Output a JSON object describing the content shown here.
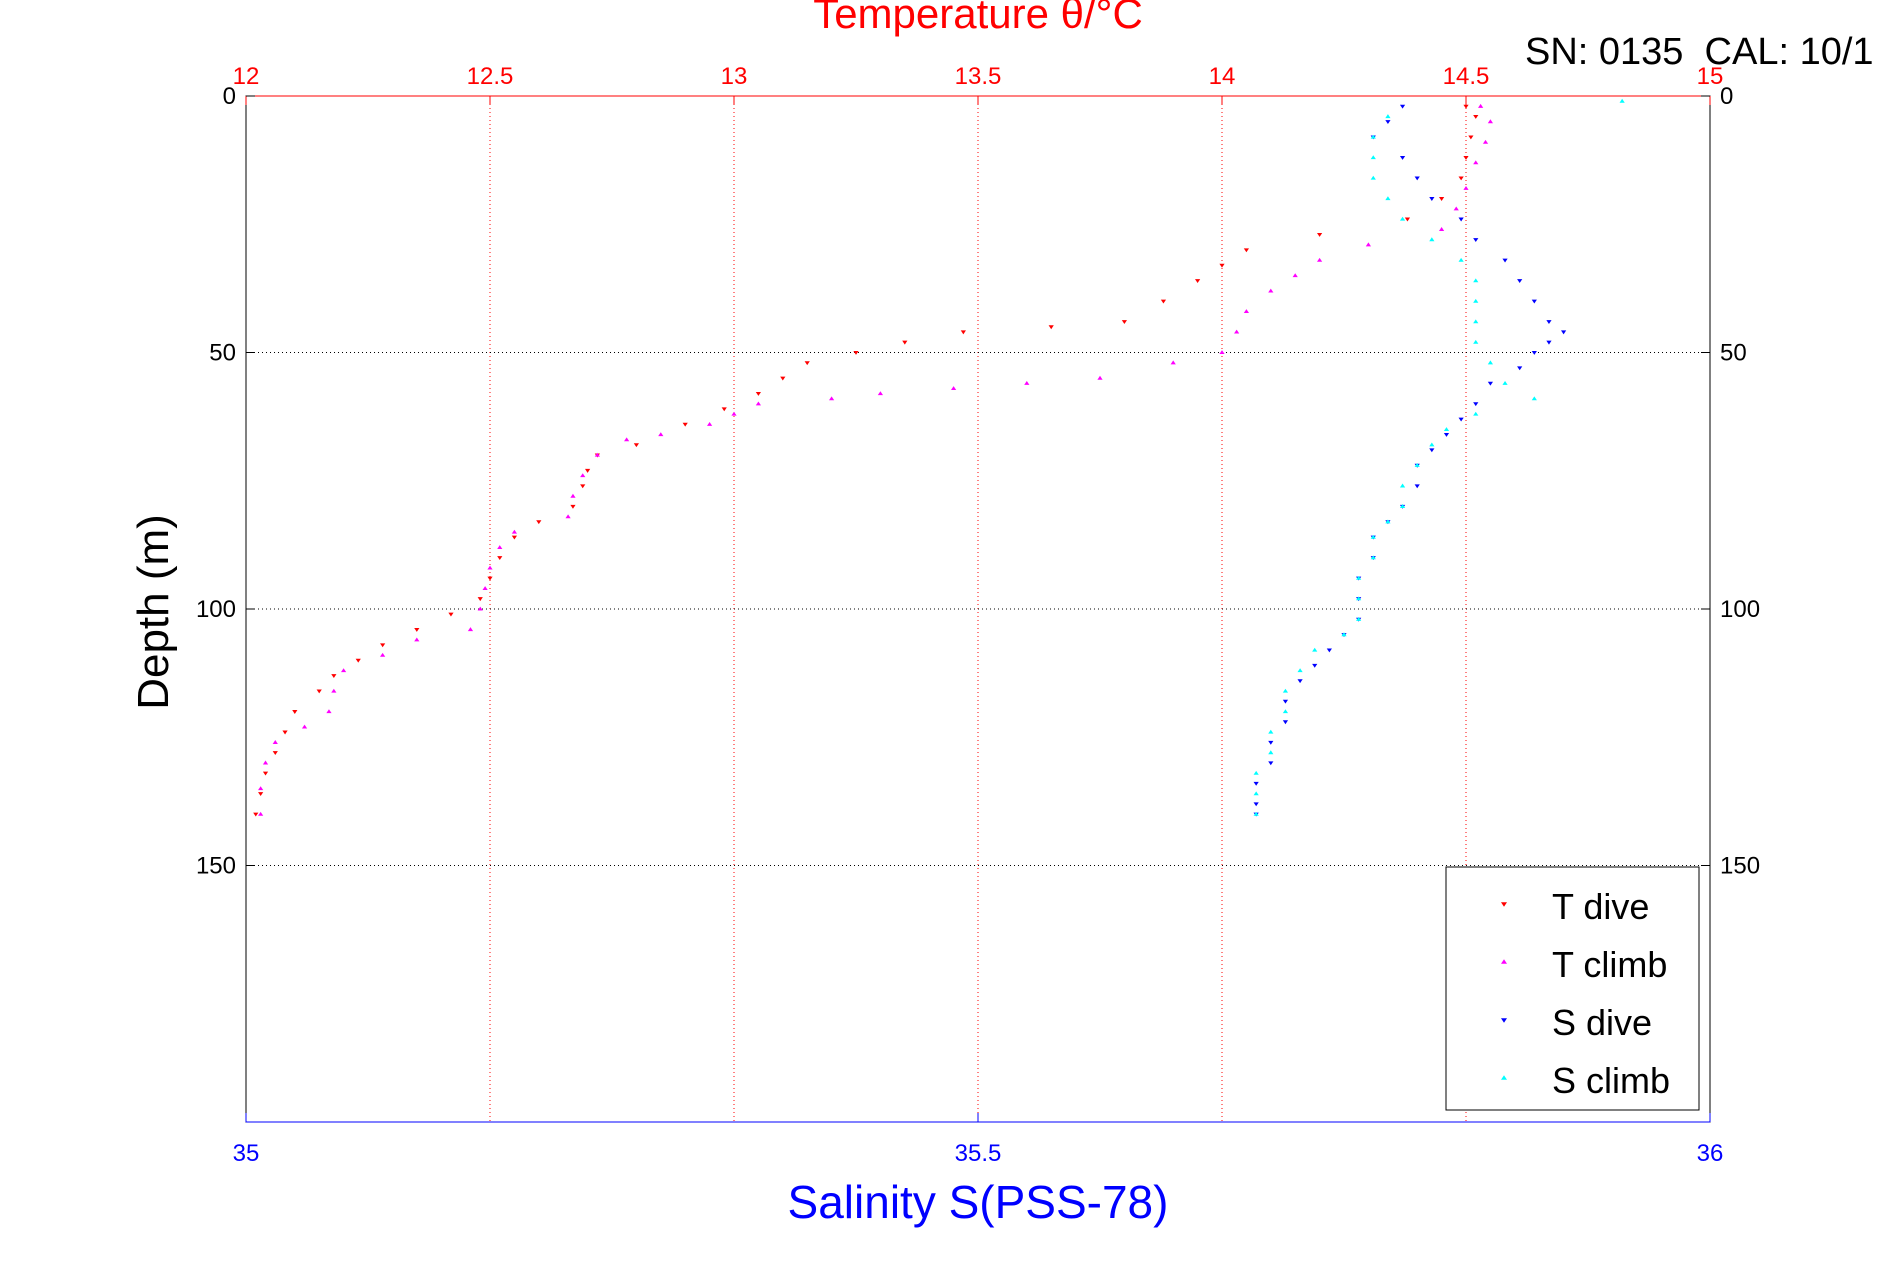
{
  "chart_data": {
    "type": "scatter",
    "title": "Temperature θ/°C",
    "header_text": "SN: 0135  CAL: 10/1",
    "ylabel": "Depth (m)",
    "xlabel": "Salinity S(PSS-78)",
    "top_axis": {
      "label": "Temperature θ/°C",
      "range": [
        12,
        15
      ],
      "ticks": [
        "12",
        "12.5",
        "13",
        "13.5",
        "14",
        "14.5",
        "15"
      ],
      "color": "#ff0000"
    },
    "bottom_axis": {
      "label": "Salinity S(PSS-78)",
      "range": [
        35,
        36
      ],
      "ticks": [
        "35",
        "35.5",
        "36"
      ],
      "color": "#0000ff"
    },
    "y_axis": {
      "range": [
        0,
        200
      ],
      "reversed": true,
      "ticks": [
        "0",
        "50",
        "100",
        "150"
      ]
    },
    "grid": true,
    "legend": {
      "position": "bottom-right"
    },
    "series": [
      {
        "name": "T dive",
        "axis": "temperature",
        "color": "#ff0000",
        "marker": "triangle-down",
        "points": [
          [
            14.5,
            2
          ],
          [
            14.52,
            4
          ],
          [
            14.51,
            8
          ],
          [
            14.5,
            12
          ],
          [
            14.49,
            16
          ],
          [
            14.45,
            20
          ],
          [
            14.38,
            24
          ],
          [
            14.2,
            27
          ],
          [
            14.05,
            30
          ],
          [
            14.0,
            33
          ],
          [
            13.95,
            36
          ],
          [
            13.88,
            40
          ],
          [
            13.8,
            44
          ],
          [
            13.65,
            45
          ],
          [
            13.47,
            46
          ],
          [
            13.35,
            48
          ],
          [
            13.25,
            50
          ],
          [
            13.15,
            52
          ],
          [
            13.1,
            55
          ],
          [
            13.05,
            58
          ],
          [
            12.98,
            61
          ],
          [
            12.9,
            64
          ],
          [
            12.8,
            68
          ],
          [
            12.72,
            70
          ],
          [
            12.7,
            73
          ],
          [
            12.69,
            76
          ],
          [
            12.67,
            80
          ],
          [
            12.6,
            83
          ],
          [
            12.55,
            86
          ],
          [
            12.52,
            90
          ],
          [
            12.5,
            94
          ],
          [
            12.48,
            98
          ],
          [
            12.42,
            101
          ],
          [
            12.35,
            104
          ],
          [
            12.28,
            107
          ],
          [
            12.23,
            110
          ],
          [
            12.18,
            113
          ],
          [
            12.15,
            116
          ],
          [
            12.1,
            120
          ],
          [
            12.08,
            124
          ],
          [
            12.06,
            128
          ],
          [
            12.04,
            132
          ],
          [
            12.03,
            136
          ],
          [
            12.02,
            140
          ]
        ]
      },
      {
        "name": "T climb",
        "axis": "temperature",
        "color": "#ff00ff",
        "marker": "triangle-up",
        "points": [
          [
            14.53,
            2
          ],
          [
            14.55,
            5
          ],
          [
            14.54,
            9
          ],
          [
            14.52,
            13
          ],
          [
            14.5,
            18
          ],
          [
            14.48,
            22
          ],
          [
            14.45,
            26
          ],
          [
            14.3,
            29
          ],
          [
            14.2,
            32
          ],
          [
            14.15,
            35
          ],
          [
            14.1,
            38
          ],
          [
            14.05,
            42
          ],
          [
            14.03,
            46
          ],
          [
            14.0,
            50
          ],
          [
            13.9,
            52
          ],
          [
            13.75,
            55
          ],
          [
            13.6,
            56
          ],
          [
            13.45,
            57
          ],
          [
            13.3,
            58
          ],
          [
            13.2,
            59
          ],
          [
            13.05,
            60
          ],
          [
            13.0,
            62
          ],
          [
            12.95,
            64
          ],
          [
            12.85,
            66
          ],
          [
            12.78,
            67
          ],
          [
            12.72,
            70
          ],
          [
            12.69,
            74
          ],
          [
            12.67,
            78
          ],
          [
            12.66,
            82
          ],
          [
            12.55,
            85
          ],
          [
            12.52,
            88
          ],
          [
            12.5,
            92
          ],
          [
            12.49,
            96
          ],
          [
            12.48,
            100
          ],
          [
            12.46,
            104
          ],
          [
            12.35,
            106
          ],
          [
            12.28,
            109
          ],
          [
            12.2,
            112
          ],
          [
            12.18,
            116
          ],
          [
            12.17,
            120
          ],
          [
            12.12,
            123
          ],
          [
            12.06,
            126
          ],
          [
            12.04,
            130
          ],
          [
            12.03,
            135
          ],
          [
            12.03,
            140
          ]
        ]
      },
      {
        "name": "S dive",
        "axis": "salinity",
        "color": "#0000ff",
        "marker": "triangle-down",
        "points": [
          [
            35.79,
            2
          ],
          [
            35.78,
            5
          ],
          [
            35.77,
            8
          ],
          [
            35.79,
            12
          ],
          [
            35.8,
            16
          ],
          [
            35.81,
            20
          ],
          [
            35.83,
            24
          ],
          [
            35.84,
            28
          ],
          [
            35.86,
            32
          ],
          [
            35.87,
            36
          ],
          [
            35.88,
            40
          ],
          [
            35.89,
            44
          ],
          [
            35.9,
            46
          ],
          [
            35.89,
            48
          ],
          [
            35.88,
            50
          ],
          [
            35.87,
            53
          ],
          [
            35.85,
            56
          ],
          [
            35.84,
            60
          ],
          [
            35.83,
            63
          ],
          [
            35.82,
            66
          ],
          [
            35.81,
            69
          ],
          [
            35.8,
            72
          ],
          [
            35.8,
            76
          ],
          [
            35.79,
            80
          ],
          [
            35.78,
            83
          ],
          [
            35.77,
            86
          ],
          [
            35.77,
            90
          ],
          [
            35.76,
            94
          ],
          [
            35.76,
            98
          ],
          [
            35.76,
            102
          ],
          [
            35.75,
            105
          ],
          [
            35.74,
            108
          ],
          [
            35.73,
            111
          ],
          [
            35.72,
            114
          ],
          [
            35.71,
            118
          ],
          [
            35.71,
            122
          ],
          [
            35.7,
            126
          ],
          [
            35.7,
            130
          ],
          [
            35.69,
            134
          ],
          [
            35.69,
            138
          ],
          [
            35.69,
            140
          ]
        ]
      },
      {
        "name": "S climb",
        "axis": "salinity",
        "color": "#00ffff",
        "marker": "triangle-up",
        "points": [
          [
            35.94,
            1
          ],
          [
            35.78,
            4
          ],
          [
            35.77,
            8
          ],
          [
            35.77,
            12
          ],
          [
            35.77,
            16
          ],
          [
            35.78,
            20
          ],
          [
            35.79,
            24
          ],
          [
            35.81,
            28
          ],
          [
            35.83,
            32
          ],
          [
            35.84,
            36
          ],
          [
            35.84,
            40
          ],
          [
            35.84,
            44
          ],
          [
            35.84,
            48
          ],
          [
            35.85,
            52
          ],
          [
            35.86,
            56
          ],
          [
            35.88,
            59
          ],
          [
            35.84,
            62
          ],
          [
            35.82,
            65
          ],
          [
            35.81,
            68
          ],
          [
            35.8,
            72
          ],
          [
            35.79,
            76
          ],
          [
            35.79,
            80
          ],
          [
            35.78,
            83
          ],
          [
            35.77,
            86
          ],
          [
            35.77,
            90
          ],
          [
            35.76,
            94
          ],
          [
            35.76,
            98
          ],
          [
            35.76,
            102
          ],
          [
            35.75,
            105
          ],
          [
            35.73,
            108
          ],
          [
            35.72,
            112
          ],
          [
            35.71,
            116
          ],
          [
            35.71,
            120
          ],
          [
            35.7,
            124
          ],
          [
            35.7,
            128
          ],
          [
            35.69,
            132
          ],
          [
            35.69,
            136
          ],
          [
            35.69,
            140
          ]
        ]
      }
    ]
  }
}
